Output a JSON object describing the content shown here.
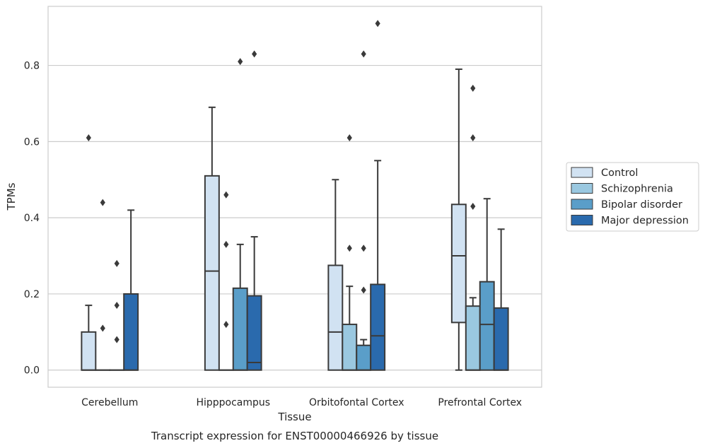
{
  "caption": "Transcript expression for ENST00000466926 by tissue",
  "chart_data": {
    "type": "box",
    "xlabel": "Tissue",
    "ylabel": "TPMs",
    "ylim": [
      -0.045,
      0.955
    ],
    "yticks": [
      0.0,
      0.2,
      0.4,
      0.6,
      0.8
    ],
    "ytick_labels": [
      "0.0",
      "0.2",
      "0.4",
      "0.6",
      "0.8"
    ],
    "grid": "horizontal",
    "legend_position": "right",
    "categories": [
      "Cerebellum",
      "Hipppocampus",
      "Orbitofontal Cortex",
      "Prefrontal Cortex"
    ],
    "series": [
      {
        "name": "Control",
        "color": "#d1e2f2",
        "boxes": [
          {
            "min": 0,
            "q1": 0,
            "median": 0,
            "q3": 0.1,
            "max": 0.17,
            "outliers": [
              0.61
            ]
          },
          {
            "min": 0,
            "q1": 0,
            "median": 0.26,
            "q3": 0.51,
            "max": 0.69,
            "outliers": []
          },
          {
            "min": 0,
            "q1": 0,
            "median": 0.1,
            "q3": 0.275,
            "max": 0.5,
            "outliers": []
          },
          {
            "min": 0,
            "q1": 0.125,
            "median": 0.3,
            "q3": 0.435,
            "max": 0.79,
            "outliers": []
          }
        ]
      },
      {
        "name": "Schizophrenia",
        "color": "#9ac8e0",
        "boxes": [
          {
            "min": 0,
            "q1": 0,
            "median": 0,
            "q3": 0,
            "max": 0,
            "outliers": [
              0.44,
              0.11
            ]
          },
          {
            "min": 0,
            "q1": 0,
            "median": 0,
            "q3": 0,
            "max": 0,
            "outliers": [
              0.46,
              0.33,
              0.12
            ]
          },
          {
            "min": 0,
            "q1": 0,
            "median": 0,
            "q3": 0.12,
            "max": 0.22,
            "outliers": [
              0.61,
              0.32
            ]
          },
          {
            "min": 0,
            "q1": 0,
            "median": 0,
            "q3": 0.168,
            "max": 0.19,
            "outliers": [
              0.74,
              0.61,
              0.43
            ]
          }
        ]
      },
      {
        "name": "Bipolar disorder",
        "color": "#5a9ec9",
        "boxes": [
          {
            "min": 0,
            "q1": 0,
            "median": 0,
            "q3": 0,
            "max": 0,
            "outliers": [
              0.28,
              0.17,
              0.08
            ]
          },
          {
            "min": 0,
            "q1": 0,
            "median": 0,
            "q3": 0.215,
            "max": 0.33,
            "outliers": [
              0.81
            ]
          },
          {
            "min": 0,
            "q1": 0,
            "median": 0,
            "q3": 0.065,
            "max": 0.08,
            "outliers": [
              0.83,
              0.32,
              0.21
            ]
          },
          {
            "min": 0,
            "q1": 0,
            "median": 0.12,
            "q3": 0.232,
            "max": 0.45,
            "outliers": []
          }
        ]
      },
      {
        "name": "Major depression",
        "color": "#2a6aad",
        "boxes": [
          {
            "min": 0,
            "q1": 0,
            "median": 0,
            "q3": 0.2,
            "max": 0.42,
            "outliers": []
          },
          {
            "min": 0,
            "q1": 0,
            "median": 0.02,
            "q3": 0.195,
            "max": 0.35,
            "outliers": [
              0.83
            ]
          },
          {
            "min": 0,
            "q1": 0,
            "median": 0.09,
            "q3": 0.225,
            "max": 0.55,
            "outliers": [
              0.91
            ]
          },
          {
            "min": 0,
            "q1": 0,
            "median": 0,
            "q3": 0.163,
            "max": 0.37,
            "outliers": []
          }
        ]
      }
    ]
  }
}
